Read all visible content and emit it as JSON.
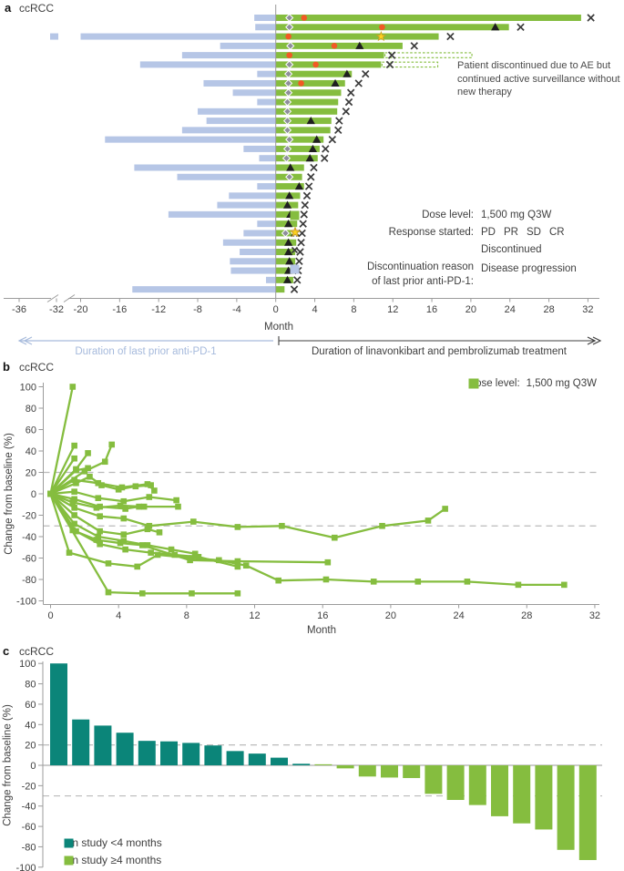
{
  "colors": {
    "green": "#85BD3F",
    "teal": "#0B8579",
    "blue_bar": "#B6C6E6",
    "blue_text": "#A6BADC",
    "orange": "#F15A24",
    "gray_diamond": "#8E8E9C",
    "star_yellow": "#FFD21E",
    "star_stroke": "#C9A227",
    "marker_dark": "#1F1F1F",
    "x_mark": "#3B3B3B",
    "axis": "#9B9B9B",
    "dashed": "#BBBBBB",
    "text": "#3F3F3F"
  },
  "panel_a": {
    "label": "a",
    "title": "ccRCC",
    "xlabel": "Month",
    "annotation": "Patient discontinued due to AE but continued active surveillance without new therapy",
    "arrow_left": "Duration of last prior anti-PD-1",
    "arrow_right": "Duration of linavonkibart and pembrolizumab treatment",
    "legend": {
      "dose_label": "Dose level:",
      "dose_value": "1,500 mg Q3W",
      "response_label": "Response started:",
      "pd": "PD",
      "pr": "PR",
      "sd": "SD",
      "cr": "CR",
      "discontinued": "Discontinued",
      "disc_reason_line1": "Discontinuation reason",
      "disc_reason_line2": "of last prior anti-PD-1:",
      "disc_reason_value": "Disease progression"
    }
  },
  "panel_b": {
    "label": "b",
    "title": "ccRCC",
    "legend_dose_label": "Dose level:",
    "legend_dose_value": "1,500 mg Q3W",
    "ylabel": "Change from baseline (%)",
    "xlabel": "Month"
  },
  "panel_c": {
    "label": "c",
    "title": "ccRCC",
    "ylabel": "Change from baseline (%)",
    "legend": [
      {
        "label": "On study <4 months",
        "color_key": "teal"
      },
      {
        "label": "On study ≥4 months",
        "color_key": "green"
      }
    ]
  },
  "chart_data": [
    {
      "type": "bar",
      "variant": "swimmer-plot",
      "panel": "a",
      "title": "ccRCC",
      "xlabel": "Month",
      "x_ticks": [
        -36,
        -32,
        -20,
        -16,
        -12,
        -8,
        -4,
        0,
        4,
        8,
        12,
        16,
        20,
        24,
        28,
        32
      ],
      "axis_break_between": [
        -32,
        -20
      ],
      "bar_series_left": "Duration of last prior anti-PD-1 (months, shown negative)",
      "bar_series_right": "Duration of linavonkibart and pembrolizumab treatment (months)",
      "marker_legend": {
        "pd": "PD",
        "pr": "PR",
        "sd": "SD",
        "cr": "CR",
        "x": "Discontinued"
      },
      "rows": [
        {
          "prior": 2.2,
          "treat": 31.3,
          "sd": 1.4,
          "pr": 2.9,
          "x": 32.3
        },
        {
          "prior": 2.1,
          "treat": 23.9,
          "sd": 1.4,
          "pr": 10.9,
          "pd": 22.5,
          "x": 25.1
        },
        {
          "prior": 33.5,
          "treat": 16.7,
          "pr": 1.3,
          "cr": 10.8,
          "x": 17.9
        },
        {
          "prior": 5.7,
          "treat": 13.0,
          "sd": 1.5,
          "pr": 6.0,
          "pd": 8.6,
          "x": 14.2
        },
        {
          "prior": 9.6,
          "treat": 11.1,
          "pr": 1.4,
          "x": 11.9,
          "dash": 20.2
        },
        {
          "prior": 13.9,
          "treat": 10.8,
          "sd": 1.4,
          "pr": 4.1,
          "x": 11.7,
          "dash": 16.7
        },
        {
          "prior": 1.9,
          "treat": 7.8,
          "sd": 1.3,
          "pd": 7.3,
          "x": 9.2
        },
        {
          "prior": 7.4,
          "treat": 7.1,
          "sd": 1.3,
          "pr": 2.6,
          "pd": 6.1,
          "x": 8.5
        },
        {
          "prior": 4.4,
          "treat": 6.7,
          "sd": 1.3,
          "x": 7.7
        },
        {
          "prior": 1.9,
          "treat": 6.4,
          "sd": 1.2,
          "x": 7.5
        },
        {
          "prior": 8.0,
          "treat": 6.3,
          "sd": 1.2,
          "x": 7.2
        },
        {
          "prior": 7.1,
          "treat": 5.7,
          "sd": 1.2,
          "pd": 3.6,
          "x": 6.5
        },
        {
          "prior": 9.6,
          "treat": 5.6,
          "sd": 1.2,
          "x": 6.4
        },
        {
          "prior": 17.5,
          "treat": 4.9,
          "sd": 1.4,
          "pd": 4.2,
          "x": 5.8
        },
        {
          "prior": 3.3,
          "treat": 4.5,
          "sd": 1.2,
          "pd": 3.8,
          "x": 5.1
        },
        {
          "prior": 1.7,
          "treat": 4.3,
          "sd": 1.1,
          "pd": 3.5,
          "x": 5.0
        },
        {
          "prior": 14.5,
          "treat": 2.9,
          "pd": 1.5,
          "x": 3.9
        },
        {
          "prior": 10.1,
          "treat": 2.7,
          "sd": 1.4,
          "x": 3.6
        },
        {
          "prior": 1.9,
          "treat": 2.9,
          "pd": 2.4,
          "x": 3.4
        },
        {
          "prior": 4.8,
          "treat": 2.5,
          "pd": 1.4,
          "x": 3.2
        },
        {
          "prior": 6.0,
          "treat": 2.3,
          "pd": 1.2,
          "x": 3.0
        },
        {
          "prior": 11.0,
          "treat": 2.3,
          "pd": 1.5,
          "x": 2.9
        },
        {
          "prior": 1.9,
          "treat": 2.2,
          "pd": 1.3,
          "x": 2.8
        },
        {
          "prior": 3.3,
          "treat": 2.2,
          "sd": 1.0,
          "x": 2.7
        },
        {
          "prior": 5.4,
          "treat": 2.1,
          "pd": 1.3,
          "x": 2.6
        },
        {
          "prior": 3.7,
          "treat": 2.0,
          "pd": 1.3,
          "x": 2.5
        },
        {
          "prior": 4.7,
          "treat": 2.0,
          "pd": 1.4,
          "x": 2.4
        },
        {
          "prior": 4.6,
          "treat": 1.9,
          "pd": 1.3,
          "x": 2.3
        },
        {
          "prior": 1.0,
          "treat": 1.8,
          "pd": 1.2,
          "x": 2.2
        },
        {
          "prior": 14.7,
          "treat": 0.9,
          "x": 1.9
        }
      ]
    },
    {
      "type": "line",
      "variant": "spider-plot",
      "panel": "b",
      "title": "ccRCC",
      "xlabel": "Month",
      "ylabel": "Change from baseline (%)",
      "xlim": [
        0,
        32
      ],
      "ylim": [
        -100,
        100
      ],
      "x_ticks": [
        0,
        4,
        8,
        12,
        16,
        20,
        24,
        28,
        32
      ],
      "y_tick_step": 20,
      "ref_lines": [
        20,
        -30
      ],
      "marker": "square",
      "series": [
        [
          [
            0,
            0
          ],
          [
            1.3,
            100
          ]
        ],
        [
          [
            0,
            0
          ],
          [
            1.4,
            45
          ]
        ],
        [
          [
            0,
            0
          ],
          [
            1.5,
            23
          ],
          [
            2.2,
            38
          ]
        ],
        [
          [
            0,
            0
          ],
          [
            1.4,
            33
          ]
        ],
        [
          [
            0,
            0
          ],
          [
            2.0,
            21
          ],
          [
            3.2,
            30
          ],
          [
            3.6,
            46
          ]
        ],
        [
          [
            0,
            0
          ],
          [
            1.5,
            22
          ],
          [
            2.2,
            24
          ]
        ],
        [
          [
            0,
            0
          ],
          [
            1.4,
            13
          ],
          [
            2.8,
            10
          ],
          [
            4.2,
            6
          ],
          [
            5.7,
            9
          ],
          [
            6.1,
            3
          ]
        ],
        [
          [
            0,
            0
          ],
          [
            1.5,
            10
          ],
          [
            2.3,
            16
          ],
          [
            3.0,
            8
          ],
          [
            4.0,
            4
          ],
          [
            5.0,
            7
          ],
          [
            5.9,
            8
          ]
        ],
        [
          [
            0,
            0
          ],
          [
            1.4,
            2
          ],
          [
            2.8,
            -4
          ],
          [
            4.3,
            -7
          ],
          [
            5.8,
            -3
          ],
          [
            7.4,
            -6
          ]
        ],
        [
          [
            0,
            0
          ],
          [
            1.3,
            -8
          ],
          [
            2.7,
            -13
          ],
          [
            4.1,
            -11
          ],
          [
            5.5,
            -12
          ]
        ],
        [
          [
            0,
            0
          ],
          [
            1.4,
            -5
          ],
          [
            2.9,
            -12
          ],
          [
            4.4,
            -14
          ],
          [
            5.2,
            -12
          ],
          [
            7.5,
            -12
          ]
        ],
        [
          [
            0,
            0
          ],
          [
            1.4,
            -13
          ],
          [
            2.9,
            -21
          ],
          [
            4.3,
            -23
          ],
          [
            5.8,
            -30
          ],
          [
            8.4,
            -26
          ],
          [
            11.0,
            -31
          ],
          [
            13.6,
            -30
          ],
          [
            16.7,
            -41
          ],
          [
            19.5,
            -30
          ],
          [
            22.2,
            -25
          ],
          [
            23.2,
            -14
          ]
        ],
        [
          [
            0,
            0
          ],
          [
            1.4,
            -20
          ],
          [
            2.9,
            -35
          ],
          [
            4.3,
            -38
          ],
          [
            5.7,
            -33
          ],
          [
            6.4,
            -36
          ]
        ],
        [
          [
            0,
            0
          ],
          [
            1.3,
            -34
          ],
          [
            2.7,
            -43
          ],
          [
            4.1,
            -46
          ],
          [
            5.4,
            -48
          ],
          [
            8.2,
            -62
          ],
          [
            11.0,
            -63
          ],
          [
            16.3,
            -64
          ]
        ],
        [
          [
            0,
            0
          ],
          [
            1.4,
            -28
          ],
          [
            2.8,
            -40
          ],
          [
            4.3,
            -44
          ],
          [
            5.7,
            -48
          ],
          [
            7.1,
            -52
          ],
          [
            8.5,
            -56
          ]
        ],
        [
          [
            0,
            0
          ],
          [
            1.5,
            -35
          ],
          [
            2.9,
            -47
          ],
          [
            4.4,
            -52
          ],
          [
            5.9,
            -55
          ],
          [
            7.3,
            -57
          ],
          [
            8.7,
            -59
          ],
          [
            11.0,
            -68
          ]
        ],
        [
          [
            0,
            0
          ],
          [
            1.1,
            -55
          ],
          [
            3.4,
            -65
          ],
          [
            5.1,
            -68
          ],
          [
            6.3,
            -57
          ],
          [
            8.3,
            -60
          ],
          [
            9.9,
            -62
          ],
          [
            11.5,
            -67
          ],
          [
            13.4,
            -81
          ],
          [
            16.2,
            -80
          ],
          [
            19.0,
            -82
          ],
          [
            21.6,
            -82
          ],
          [
            24.5,
            -82
          ],
          [
            27.5,
            -85
          ],
          [
            30.2,
            -85
          ]
        ],
        [
          [
            0,
            0
          ],
          [
            3.4,
            -92
          ],
          [
            5.4,
            -93
          ],
          [
            8.3,
            -93
          ],
          [
            11.0,
            -93
          ]
        ]
      ]
    },
    {
      "type": "bar",
      "variant": "waterfall-plot",
      "panel": "c",
      "title": "ccRCC",
      "ylabel": "Change from baseline (%)",
      "ylim": [
        -100,
        100
      ],
      "y_tick_step": 20,
      "ref_lines": [
        20,
        -30
      ],
      "series": [
        {
          "name": "On study <4 months",
          "color_key": "teal",
          "values": [
            100,
            45,
            39,
            32,
            24,
            23.5,
            22,
            19.5,
            14,
            11.5,
            7.5,
            1.5
          ]
        },
        {
          "name": "On study ≥4 months",
          "color_key": "green",
          "values": [
            1,
            -3,
            -11,
            -12,
            -12.5,
            -28,
            -34,
            -39,
            -50,
            -57,
            -63,
            -83,
            -93
          ]
        }
      ]
    }
  ]
}
